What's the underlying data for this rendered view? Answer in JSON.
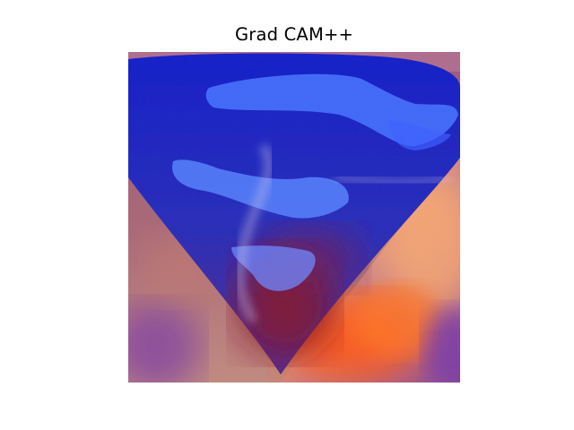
{
  "figure": {
    "title": "Grad CAM++"
  },
  "colors": {
    "page_background": "#ffffff",
    "title_text": "#000000",
    "emblem_blue": "#1e2bd6",
    "stripe_blue": "#4f7bff",
    "sweater_mauve": "#b07a86",
    "heat_orange": "#ff6a1a",
    "heat_dark_red": "#7a1020"
  }
}
